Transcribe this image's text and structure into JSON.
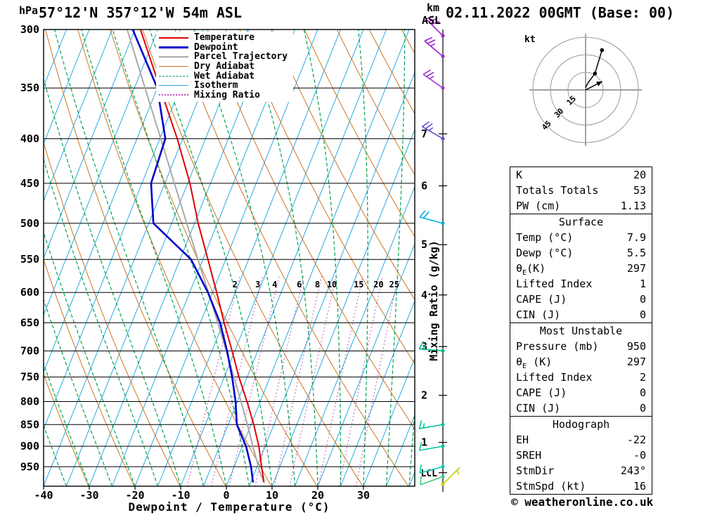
{
  "header": {
    "pressure_unit": "hPa",
    "title": "57°12'N 357°12'W 54m ASL",
    "km_unit": "km",
    "asl_unit": "ASL",
    "date": "02.11.2022 00GMT (Base: 00)"
  },
  "footer": {
    "copyright": "© weatheronline.co.uk"
  },
  "labels": {
    "xaxis_title": "Dewpoint / Temperature (°C)",
    "mixing_axis": "Mixing Ratio (g/kg)",
    "lcl": "LCL",
    "hodo_unit": "kt"
  },
  "legend": {
    "items": [
      {
        "label": "Temperature",
        "color": "#e00000",
        "style": "solid",
        "thick": 2
      },
      {
        "label": "Dewpoint",
        "color": "#0000cc",
        "style": "solid",
        "thick": 3
      },
      {
        "label": "Parcel Trajectory",
        "color": "#aaaaaa",
        "style": "solid",
        "thick": 2
      },
      {
        "label": "Dry Adiabat",
        "color": "#cc7722",
        "style": "solid",
        "thick": 1
      },
      {
        "label": "Wet Adiabat",
        "color": "#00a550",
        "style": "dashed",
        "thick": 1
      },
      {
        "label": "Isotherm",
        "color": "#29abe2",
        "style": "solid",
        "thick": 1
      },
      {
        "label": "Mixing Ratio",
        "color": "#cc44bb",
        "style": "dotted",
        "thick": 2
      }
    ]
  },
  "stats": {
    "sections": [
      {
        "rows": [
          [
            "K",
            "20"
          ],
          [
            "Totals Totals",
            "53"
          ],
          [
            "PW (cm)",
            "1.13"
          ]
        ]
      },
      {
        "header": "Surface",
        "rows": [
          [
            "Temp (°C)",
            "7.9"
          ],
          [
            "Dewp (°C)",
            "5.5"
          ],
          [
            "θE(K)",
            "297"
          ],
          [
            "Lifted Index",
            "1"
          ],
          [
            "CAPE (J)",
            "0"
          ],
          [
            "CIN (J)",
            "0"
          ]
        ]
      },
      {
        "header": "Most Unstable",
        "rows": [
          [
            "Pressure (mb)",
            "950"
          ],
          [
            "θE (K)",
            "297"
          ],
          [
            "Lifted Index",
            "2"
          ],
          [
            "CAPE (J)",
            "0"
          ],
          [
            "CIN (J)",
            "0"
          ]
        ]
      },
      {
        "header": "Hodograph",
        "rows": [
          [
            "EH",
            "-22"
          ],
          [
            "SREH",
            "-0"
          ],
          [
            "StmDir",
            "243°"
          ],
          [
            "StmSpd (kt)",
            "16"
          ]
        ]
      }
    ]
  },
  "chart_data": [
    {
      "type": "line",
      "subtype": "skewt-logp",
      "title": "57°12'N 357°12'W 54m ASL",
      "xlabel": "Dewpoint / Temperature (°C)",
      "ylabel": "hPa",
      "xlim": [
        -40,
        41
      ],
      "plim": [
        300,
        1000
      ],
      "x_ticks": [
        -40,
        -30,
        -20,
        -10,
        0,
        10,
        20,
        30
      ],
      "pressure_ticks": [
        300,
        350,
        400,
        450,
        500,
        550,
        600,
        650,
        700,
        750,
        800,
        850,
        900,
        950
      ],
      "km_ticks": [
        {
          "km": 7,
          "p": 395
        },
        {
          "km": 6,
          "p": 453
        },
        {
          "km": 5,
          "p": 529
        },
        {
          "km": 4,
          "p": 604
        },
        {
          "km": 3,
          "p": 692
        },
        {
          "km": 2,
          "p": 787
        },
        {
          "km": 1,
          "p": 891
        }
      ],
      "lcl_pressure": 965,
      "mixing_ratios": [
        2,
        3,
        4,
        6,
        8,
        10,
        15,
        20,
        25
      ],
      "series": [
        {
          "name": "Temperature",
          "color": "#e00000",
          "width": 2,
          "points": [
            [
              990,
              7.9
            ],
            [
              950,
              6.0
            ],
            [
              900,
              3.6
            ],
            [
              850,
              0.6
            ],
            [
              800,
              -2.9
            ],
            [
              750,
              -6.8
            ],
            [
              700,
              -10.6
            ],
            [
              650,
              -14.8
            ],
            [
              600,
              -19.1
            ],
            [
              550,
              -23.9
            ],
            [
              500,
              -29.2
            ],
            [
              450,
              -34.5
            ],
            [
              400,
              -41.2
            ],
            [
              350,
              -49.4
            ],
            [
              300,
              -58.8
            ]
          ]
        },
        {
          "name": "Dewpoint",
          "color": "#0000cc",
          "width": 2.6,
          "points": [
            [
              990,
              5.5
            ],
            [
              950,
              3.7
            ],
            [
              900,
              0.8
            ],
            [
              850,
              -3.1
            ],
            [
              800,
              -5.4
            ],
            [
              750,
              -8.3
            ],
            [
              700,
              -11.7
            ],
            [
              650,
              -15.7
            ],
            [
              600,
              -21.0
            ],
            [
              550,
              -27.6
            ],
            [
              500,
              -39.0
            ],
            [
              450,
              -43.0
            ],
            [
              400,
              -43.8
            ],
            [
              350,
              -50.0
            ],
            [
              300,
              -60.5
            ]
          ]
        },
        {
          "name": "Parcel Trajectory",
          "color": "#aaaaaa",
          "width": 2,
          "points": [
            [
              990,
              7.9
            ],
            [
              965,
              6.2
            ],
            [
              900,
              2.3
            ],
            [
              850,
              -0.8
            ],
            [
              800,
              -4.2
            ],
            [
              750,
              -7.9
            ],
            [
              700,
              -11.9
            ],
            [
              650,
              -16.2
            ],
            [
              600,
              -20.9
            ],
            [
              550,
              -26.1
            ],
            [
              500,
              -31.7
            ],
            [
              450,
              -37.9
            ],
            [
              400,
              -44.8
            ],
            [
              350,
              -52.7
            ],
            [
              300,
              -61.7
            ]
          ]
        }
      ],
      "wind_barbs": [
        {
          "p": 305,
          "spd": 30,
          "dir": 315,
          "color": "#a020d0"
        },
        {
          "p": 322,
          "spd": 25,
          "dir": 310,
          "color": "#a020d0"
        },
        {
          "p": 350,
          "spd": 25,
          "dir": 305,
          "color": "#9932cc"
        },
        {
          "p": 400,
          "spd": 25,
          "dir": 300,
          "color": "#5a4fd8"
        },
        {
          "p": 500,
          "spd": 20,
          "dir": 285,
          "color": "#00aadd"
        },
        {
          "p": 700,
          "spd": 15,
          "dir": 275,
          "color": "#00bb88"
        },
        {
          "p": 850,
          "spd": 15,
          "dir": 260,
          "color": "#00c4a0"
        },
        {
          "p": 900,
          "spd": 10,
          "dir": 260,
          "color": "#00c4a0"
        },
        {
          "p": 950,
          "spd": 10,
          "dir": 255,
          "color": "#00ccb0"
        },
        {
          "p": 975,
          "spd": 10,
          "dir": 250,
          "color": "#44cc77"
        },
        {
          "p": 995,
          "spd": 5,
          "dir": 45,
          "color": "#c8cc00"
        }
      ]
    },
    {
      "type": "hodograph",
      "unit": "kt",
      "rings": [
        15,
        30,
        45
      ],
      "trace": [
        [
          0,
          2
        ],
        [
          2,
          6
        ],
        [
          8,
          14
        ],
        [
          14,
          34
        ]
      ],
      "dots": [
        [
          8,
          14
        ],
        [
          14,
          34
        ]
      ],
      "storm_motion": {
        "dir": 243,
        "spd": 16
      }
    }
  ]
}
